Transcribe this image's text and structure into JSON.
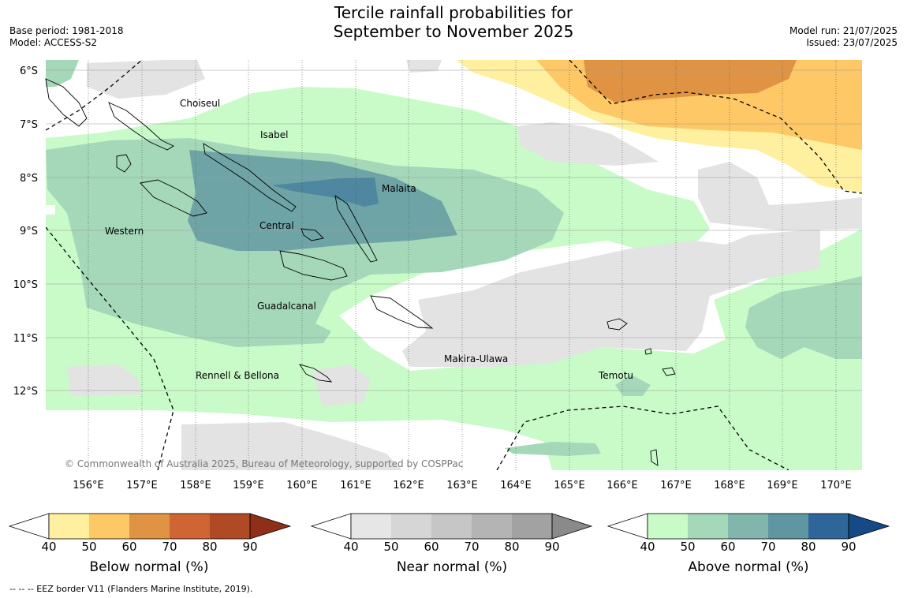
{
  "header": {
    "title_line1": "Tercile rainfall probabilities for",
    "title_line2": "September to November 2025",
    "base_period": "Base period: 1981-2018",
    "model": "Model: ACCESS-S2",
    "model_run": "Model run: 21/07/2025",
    "issued": "Issued: 23/07/2025"
  },
  "map": {
    "lat_labels": [
      "6°S",
      "7°S",
      "8°S",
      "9°S",
      "10°S",
      "11°S",
      "12°S"
    ],
    "lon_labels": [
      "156°E",
      "157°E",
      "158°E",
      "159°E",
      "160°E",
      "161°E",
      "162°E",
      "163°E",
      "164°E",
      "165°E",
      "166°E",
      "167°E",
      "168°E",
      "169°E",
      "170°E"
    ],
    "places": {
      "choiseul": "Choiseul",
      "isabel": "Isabel",
      "malaita": "Malaita",
      "western": "Western",
      "central": "Central",
      "guadalcanal": "Guadalcanal",
      "makira": "Makira-Ulawa",
      "rennell": "Rennell & Bellona",
      "temotu": "Temotu"
    },
    "copyright": "© Commonwealth of Australia 2025, Bureau of Meteorology, supported by COSPPac"
  },
  "colorbars": [
    {
      "label": "Below normal (%)",
      "ticks": [
        "40",
        "50",
        "60",
        "70",
        "80",
        "90"
      ],
      "colors": [
        "#fff0a0",
        "#fdc865",
        "#e09443",
        "#cf6532",
        "#b04a25",
        "#8f2f17"
      ]
    },
    {
      "label": "Near normal (%)",
      "ticks": [
        "40",
        "50",
        "60",
        "70",
        "80",
        "90"
      ],
      "colors": [
        "#e6e6e6",
        "#d6d6d6",
        "#c6c6c6",
        "#b4b4b4",
        "#a2a2a2",
        "#8a8a8a"
      ]
    },
    {
      "label": "Above normal (%)",
      "ticks": [
        "40",
        "50",
        "60",
        "70",
        "80",
        "90"
      ],
      "colors": [
        "#c8fbc8",
        "#a4d8b8",
        "#82b6ac",
        "#5e97a2",
        "#2f6699",
        "#154a86"
      ]
    }
  ],
  "footnote": "--  --  -- EEZ border V11 (Flanders Marine Institute, 2019)."
}
